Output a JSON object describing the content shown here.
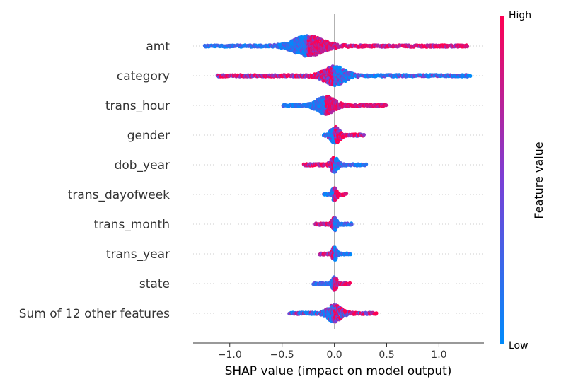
{
  "chart_data": {
    "type": "scatter",
    "subtype": "shap-beeswarm",
    "xlabel": "SHAP value (impact on model output)",
    "xlim": [
      -1.35,
      1.43
    ],
    "xticks": [
      -1.0,
      -0.5,
      0.0,
      0.5,
      1.0
    ],
    "xtick_labels": [
      "−1.0",
      "−0.5",
      "0.0",
      "0.5",
      "1.0"
    ],
    "zero_line": 0.0,
    "colorbar": {
      "title": "Feature value",
      "high_label": "High",
      "low_label": "Low",
      "high_color": "#ff0052",
      "mid_color": "#7a3fd6",
      "low_color": "#008bfb"
    },
    "features": [
      {
        "name": "amt",
        "min": -1.24,
        "max": 1.28,
        "peak": -0.25,
        "spread": 0.13,
        "height": 0.9,
        "low_side": "left",
        "mixed": 0.3
      },
      {
        "name": "category",
        "min": -1.12,
        "max": 1.3,
        "peak": 0.0,
        "spread": 0.09,
        "height": 0.85,
        "low_side": "right",
        "mixed": 0.5
      },
      {
        "name": "trans_hour",
        "min": -0.49,
        "max": 0.5,
        "peak": -0.08,
        "spread": 0.08,
        "height": 0.8,
        "low_side": "left",
        "mixed": 0.2
      },
      {
        "name": "gender",
        "min": -0.1,
        "max": 0.29,
        "peak": 0.01,
        "spread": 0.04,
        "height": 0.75,
        "low_side": "left",
        "mixed": 0.5
      },
      {
        "name": "dob_year",
        "min": -0.29,
        "max": 0.31,
        "peak": 0.0,
        "spread": 0.03,
        "height": 0.7,
        "low_side": "right",
        "mixed": 0.4
      },
      {
        "name": "trans_dayofweek",
        "min": -0.1,
        "max": 0.12,
        "peak": 0.0,
        "spread": 0.02,
        "height": 0.65,
        "low_side": "left",
        "mixed": 0.3
      },
      {
        "name": "trans_month",
        "min": -0.18,
        "max": 0.17,
        "peak": 0.0,
        "spread": 0.02,
        "height": 0.6,
        "low_side": "right",
        "mixed": 0.3
      },
      {
        "name": "trans_year",
        "min": -0.14,
        "max": 0.16,
        "peak": 0.0,
        "spread": 0.02,
        "height": 0.6,
        "low_side": "right",
        "mixed": 0.4
      },
      {
        "name": "state",
        "min": -0.2,
        "max": 0.15,
        "peak": 0.0,
        "spread": 0.02,
        "height": 0.6,
        "low_side": "left",
        "mixed": 0.3
      },
      {
        "name": "Sum of 12 other features",
        "min": -0.43,
        "max": 0.41,
        "peak": 0.0,
        "spread": 0.06,
        "height": 0.75,
        "low_side": "left",
        "mixed": 0.7
      }
    ]
  }
}
